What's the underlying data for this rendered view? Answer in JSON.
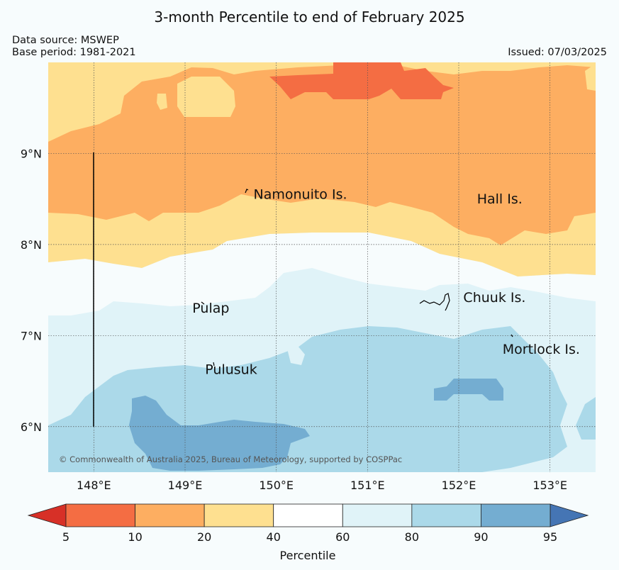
{
  "title": "3-month Percentile to end of February 2025",
  "data_source": "Data source: MSWEP",
  "base_period": "Base period: 1981-2021",
  "issued": "Issued: 07/03/2025",
  "copyright": "© Commonwealth of Australia 2025, Bureau of Meteorology, supported by COSPPac",
  "map": {
    "lon_range": [
      147.5,
      153.5
    ],
    "lat_range": [
      5.5,
      10.0
    ],
    "lon_ticks": [
      {
        "value": 148,
        "label": "148°E"
      },
      {
        "value": 149,
        "label": "149°E"
      },
      {
        "value": 150,
        "label": "150°E"
      },
      {
        "value": 151,
        "label": "151°E"
      },
      {
        "value": 152,
        "label": "152°E"
      },
      {
        "value": 153,
        "label": "153°E"
      }
    ],
    "lat_ticks": [
      {
        "value": 9,
        "label": "9°N"
      },
      {
        "value": 8,
        "label": "8°N"
      },
      {
        "value": 7,
        "label": "7°N"
      },
      {
        "value": 6,
        "label": "6°N"
      }
    ],
    "gridlines": true,
    "places": [
      {
        "name": "Namonuito Is.",
        "lon": 149.75,
        "lat": 8.5
      },
      {
        "name": "Hall Is.",
        "lon": 152.2,
        "lat": 8.45
      },
      {
        "name": "Pulap",
        "lon": 149.08,
        "lat": 7.25
      },
      {
        "name": "Chuuk Is.",
        "lon": 152.05,
        "lat": 7.37
      },
      {
        "name": "Mortlock Is.",
        "lon": 152.48,
        "lat": 6.8
      },
      {
        "name": "Pulusuk",
        "lon": 149.22,
        "lat": 6.58
      }
    ]
  },
  "colorbar": {
    "label": "Percentile",
    "ticks": [
      "5",
      "10",
      "20",
      "40",
      "60",
      "80",
      "90",
      "95"
    ],
    "colors": [
      "#d73027",
      "#f46d43",
      "#fdae61",
      "#fee090",
      "#ffffff",
      "#e0f3f8",
      "#abd9e9",
      "#74add1",
      "#4575b4"
    ]
  }
}
